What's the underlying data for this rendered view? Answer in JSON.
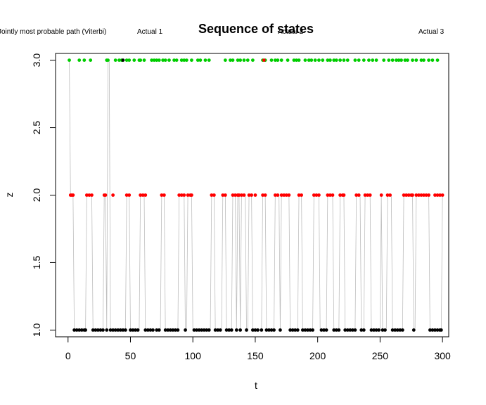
{
  "chart_data": {
    "type": "scatter",
    "title": "Sequence of states",
    "xlabel": "t",
    "ylabel": "z",
    "xlim": [
      -10,
      305
    ],
    "ylim": [
      0.95,
      3.05
    ],
    "xticks": [
      0,
      50,
      100,
      150,
      200,
      250,
      300
    ],
    "yticks": [
      1.0,
      1.5,
      2.0,
      2.5,
      3.0
    ],
    "ytick_labels": [
      "1.0",
      "1.5",
      "2.0",
      "2.5",
      "3.0"
    ],
    "grid": false,
    "legend_entries": [
      "Jointly most probable path (Viterbi)",
      "Actual  1",
      "Actual  2",
      "Actual  3"
    ],
    "colors": {
      "path": "#bebebe",
      "state1": "#000000",
      "state2": "#ff0000",
      "state3": "#00cd00"
    },
    "series": [
      {
        "name": "Actual  1",
        "color": "#000000",
        "z": 1,
        "t": [
          5,
          6,
          7,
          8,
          9,
          10,
          11,
          12,
          13,
          14,
          20,
          21,
          22,
          23,
          24,
          25,
          26,
          27,
          28,
          31,
          34,
          35,
          36,
          37,
          38,
          39,
          40,
          41,
          42,
          43,
          44,
          45,
          46,
          50,
          51,
          52,
          53,
          54,
          55,
          56,
          57,
          62,
          63,
          64,
          65,
          66,
          67,
          68,
          69,
          70,
          71,
          72,
          73,
          74,
          78,
          79,
          80,
          81,
          82,
          83,
          84,
          85,
          86,
          87,
          88,
          94,
          95,
          100,
          101,
          102,
          103,
          104,
          105,
          106,
          107,
          108,
          109,
          110,
          111,
          112,
          113,
          114,
          118,
          119,
          120,
          121,
          122,
          123,
          127,
          128,
          129,
          130,
          131,
          135,
          138,
          143,
          144,
          148,
          149,
          150,
          151,
          152,
          153,
          154,
          155,
          159,
          160,
          161,
          162,
          163,
          164,
          165,
          170,
          178,
          179,
          180,
          181,
          182,
          183,
          184,
          188,
          189,
          190,
          191,
          192,
          193,
          194,
          195,
          196,
          202,
          203,
          204,
          205,
          206,
          207,
          213,
          214,
          215,
          216,
          217,
          222,
          223,
          224,
          225,
          226,
          227,
          228,
          229,
          230,
          235,
          236,
          237,
          243,
          244,
          245,
          246,
          247,
          248,
          249,
          250,
          252,
          253,
          254,
          255,
          260,
          261,
          262,
          263,
          264,
          265,
          266,
          267,
          268,
          277,
          278,
          290,
          291,
          292,
          293,
          294,
          295,
          296,
          297,
          298,
          299
        ],
        "dots": [
          5,
          7,
          9,
          11,
          13,
          14,
          20,
          22,
          24,
          26,
          28,
          31,
          34,
          36,
          38,
          40,
          42,
          44,
          46,
          50,
          52,
          54,
          56,
          62,
          64,
          66,
          68,
          71,
          73,
          78,
          80,
          82,
          84,
          86,
          88,
          94,
          101,
          103,
          105,
          107,
          109,
          111,
          113,
          118,
          120,
          122,
          127,
          129,
          131,
          135,
          138,
          143,
          148,
          150,
          152,
          155,
          159,
          161,
          163,
          165,
          170,
          178,
          180,
          182,
          184,
          188,
          190,
          192,
          194,
          196,
          203,
          205,
          207,
          213,
          215,
          217,
          222,
          224,
          226,
          228,
          230,
          235,
          237,
          243,
          245,
          247,
          249,
          252,
          254,
          260,
          262,
          264,
          266,
          268,
          277,
          290,
          292,
          294,
          296,
          298,
          299
        ]
      },
      {
        "name": "Actual  2",
        "color": "#ff0000",
        "z": 2,
        "t": [
          2,
          3,
          4,
          15,
          16,
          17,
          18,
          19,
          29,
          30,
          47,
          48,
          49,
          58,
          59,
          60,
          61,
          75,
          76,
          77,
          89,
          90,
          91,
          92,
          93,
          96,
          97,
          98,
          99,
          115,
          116,
          117,
          124,
          125,
          126,
          132,
          133,
          134,
          136,
          137,
          139,
          140,
          141,
          142,
          145,
          146,
          147,
          156,
          157,
          158,
          166,
          167,
          168,
          169,
          171,
          172,
          173,
          174,
          175,
          176,
          177,
          185,
          186,
          187,
          197,
          198,
          199,
          200,
          201,
          208,
          209,
          210,
          211,
          212,
          218,
          219,
          220,
          221,
          231,
          232,
          233,
          234,
          238,
          239,
          240,
          241,
          242,
          251,
          256,
          257,
          258,
          259,
          269,
          270,
          271,
          272,
          273,
          274,
          275,
          276,
          279,
          280,
          281,
          282,
          283,
          284,
          285,
          286,
          287,
          288,
          289,
          300
        ],
        "dots": [
          2,
          3,
          4,
          15,
          17,
          19,
          29,
          30,
          36,
          47,
          49,
          58,
          60,
          62,
          75,
          77,
          89,
          91,
          93,
          96,
          98,
          99,
          115,
          117,
          124,
          126,
          132,
          134,
          136,
          137,
          139,
          141,
          145,
          147,
          150,
          156,
          158,
          166,
          168,
          171,
          173,
          175,
          177,
          185,
          187,
          197,
          199,
          201,
          208,
          210,
          212,
          218,
          220,
          221,
          231,
          233,
          238,
          240,
          242,
          251,
          256,
          258,
          269,
          271,
          273,
          275,
          276,
          279,
          281,
          283,
          285,
          287,
          289,
          294,
          296,
          298,
          300
        ]
      },
      {
        "name": "Actual  3",
        "color": "#00cd00",
        "z": 3,
        "t": [
          1,
          9,
          10,
          31,
          32,
          33,
          38,
          39,
          40,
          41,
          42,
          43,
          44,
          45,
          46,
          47,
          48,
          49,
          50,
          51,
          52,
          53,
          54,
          55,
          56,
          57,
          58,
          59,
          60,
          61,
          62,
          63,
          64,
          65,
          66,
          67,
          68,
          69,
          70,
          71,
          72,
          73,
          74,
          75,
          76,
          77,
          78,
          79,
          80,
          81,
          82,
          83,
          84,
          85,
          86,
          87,
          88,
          89,
          90,
          91,
          92,
          93,
          94,
          95,
          96,
          97,
          98,
          99,
          100,
          101,
          102,
          103,
          104,
          105,
          106,
          107,
          108,
          109,
          110,
          111,
          112,
          113,
          114,
          115,
          116,
          117,
          118,
          119,
          120,
          121,
          122,
          123,
          124,
          125,
          126,
          127,
          128,
          129,
          130,
          131,
          132,
          133,
          134,
          135,
          136,
          137,
          138,
          139,
          140,
          141,
          142,
          143,
          144,
          145,
          146,
          147,
          148,
          149,
          150,
          151,
          152,
          153,
          154,
          155,
          156,
          157,
          158,
          159,
          160,
          161,
          162,
          163,
          164,
          165,
          166,
          167,
          168,
          169,
          170,
          171,
          172,
          173,
          174,
          175,
          176,
          177,
          178,
          179,
          180,
          181,
          182,
          183,
          184,
          185,
          186,
          187,
          188,
          189,
          190,
          191,
          192,
          193,
          194,
          195,
          196,
          197,
          198,
          199,
          200,
          201,
          202,
          203,
          204,
          205,
          206,
          207,
          208,
          209,
          210,
          211,
          212,
          213,
          214,
          215,
          216,
          217,
          218,
          219,
          220,
          221,
          222,
          223,
          224,
          225,
          226,
          227,
          228,
          229,
          230,
          231,
          232,
          233,
          234,
          235,
          236,
          237,
          238,
          239,
          240,
          241,
          242,
          243,
          244,
          245,
          246,
          247,
          248,
          249,
          250,
          251,
          252,
          253,
          254,
          255,
          256,
          257,
          258,
          259,
          260,
          261,
          262,
          263,
          264,
          265,
          266,
          267,
          268,
          269,
          270,
          271,
          272,
          273,
          274,
          275,
          276,
          277,
          278,
          279,
          280,
          281,
          282,
          283,
          284,
          285,
          286,
          287,
          288,
          289,
          290,
          291,
          292,
          293,
          294,
          295,
          296,
          297,
          298,
          299,
          300
        ],
        "dots": [
          1,
          9,
          13,
          18,
          31,
          32,
          38,
          41,
          43,
          47,
          49,
          53,
          57,
          58,
          61,
          67,
          69,
          71,
          73,
          76,
          78,
          81,
          85,
          87,
          91,
          93,
          95,
          99,
          104,
          106,
          110,
          113,
          126,
          130,
          132,
          136,
          138,
          141,
          144,
          148,
          156,
          158,
          163,
          166,
          168,
          171,
          176,
          181,
          183,
          185,
          190,
          193,
          195,
          198,
          201,
          204,
          208,
          210,
          213,
          215,
          218,
          221,
          224,
          230,
          233,
          237,
          241,
          244,
          247,
          253,
          257,
          260,
          263,
          265,
          267,
          270,
          272,
          276,
          279,
          283,
          285,
          289,
          292,
          296
        ]
      }
    ],
    "off_points": [
      {
        "t": 44,
        "z": 3.0,
        "color": "#000000"
      },
      {
        "t": 157,
        "z": 3.0,
        "color": "#ff0000"
      }
    ]
  }
}
